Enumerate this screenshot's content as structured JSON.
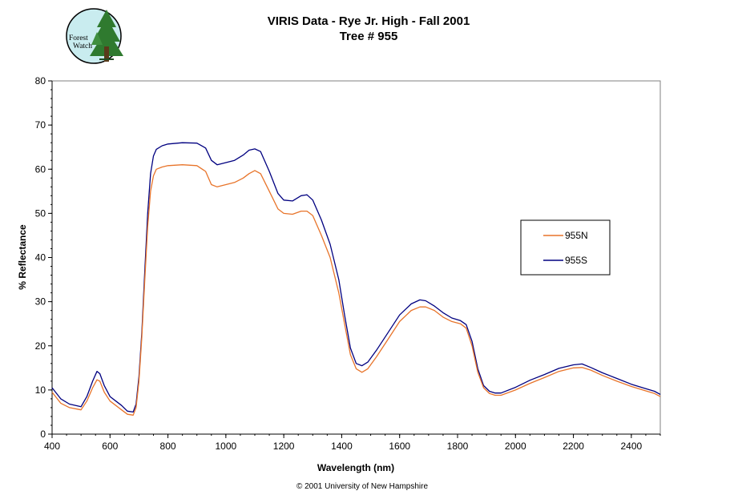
{
  "logo": {
    "line1": "Forest",
    "line2": "Watch"
  },
  "copyright": "© 2001 University of New Hampshire",
  "chart_data": {
    "type": "line",
    "title": "VIRIS Data - Rye Jr. High - Fall 2001",
    "subtitle": "Tree # 955",
    "xlabel": "Wavelength (nm)",
    "ylabel": "% Reflectance",
    "xlim": [
      400,
      2500
    ],
    "ylim": [
      0,
      80
    ],
    "x_ticks": [
      400,
      600,
      800,
      1000,
      1200,
      1400,
      1600,
      1800,
      2000,
      2200,
      2400
    ],
    "y_ticks": [
      0,
      10,
      20,
      30,
      40,
      50,
      60,
      70,
      80
    ],
    "grid": false,
    "legend_position": "right",
    "series": [
      {
        "name": "955N",
        "color": "#e8742a",
        "x": [
          400,
          430,
          460,
          500,
          520,
          540,
          555,
          565,
          580,
          600,
          620,
          640,
          660,
          680,
          690,
          700,
          710,
          720,
          730,
          740,
          750,
          760,
          780,
          800,
          850,
          900,
          930,
          950,
          970,
          1000,
          1030,
          1060,
          1080,
          1100,
          1120,
          1150,
          1180,
          1200,
          1230,
          1260,
          1280,
          1300,
          1330,
          1360,
          1390,
          1410,
          1430,
          1450,
          1470,
          1490,
          1520,
          1560,
          1600,
          1640,
          1670,
          1690,
          1720,
          1750,
          1780,
          1810,
          1830,
          1850,
          1870,
          1890,
          1910,
          1930,
          1950,
          2000,
          2050,
          2100,
          2150,
          2200,
          2230,
          2260,
          2300,
          2350,
          2400,
          2450,
          2480,
          2500
        ],
        "y": [
          9.5,
          7.0,
          6.0,
          5.5,
          7.5,
          10.5,
          12.3,
          12.0,
          9.5,
          7.5,
          6.5,
          5.5,
          4.5,
          4.3,
          6.0,
          12.0,
          22.0,
          35.0,
          47.0,
          55.0,
          58.5,
          60.0,
          60.5,
          60.8,
          61.0,
          60.8,
          59.5,
          56.5,
          56.0,
          56.5,
          57.0,
          58.0,
          59.0,
          59.7,
          59.0,
          55.0,
          51.0,
          50.0,
          49.8,
          50.5,
          50.5,
          49.5,
          45.0,
          40.0,
          32.0,
          25.0,
          18.0,
          14.8,
          14.0,
          14.8,
          17.5,
          21.5,
          25.5,
          28.0,
          28.8,
          28.8,
          28.0,
          26.5,
          25.5,
          25.0,
          24.0,
          20.0,
          14.0,
          10.5,
          9.2,
          8.8,
          8.8,
          10.0,
          11.5,
          12.8,
          14.2,
          15.0,
          15.1,
          14.5,
          13.3,
          12.0,
          10.8,
          9.8,
          9.2,
          8.5
        ]
      },
      {
        "name": "955S",
        "color": "#000080",
        "x": [
          400,
          430,
          460,
          500,
          520,
          540,
          555,
          565,
          580,
          600,
          620,
          640,
          660,
          680,
          690,
          700,
          710,
          720,
          730,
          740,
          750,
          760,
          780,
          800,
          850,
          900,
          930,
          950,
          970,
          1000,
          1030,
          1060,
          1080,
          1100,
          1120,
          1150,
          1180,
          1200,
          1230,
          1260,
          1280,
          1300,
          1330,
          1360,
          1390,
          1410,
          1430,
          1450,
          1470,
          1490,
          1520,
          1560,
          1600,
          1640,
          1670,
          1690,
          1720,
          1750,
          1780,
          1810,
          1830,
          1850,
          1870,
          1890,
          1910,
          1930,
          1950,
          2000,
          2050,
          2100,
          2150,
          2200,
          2230,
          2260,
          2300,
          2350,
          2400,
          2450,
          2480,
          2500
        ],
        "y": [
          10.5,
          8.0,
          6.8,
          6.2,
          8.5,
          12.0,
          14.2,
          13.7,
          11.0,
          8.5,
          7.5,
          6.5,
          5.2,
          5.0,
          6.8,
          13.0,
          23.0,
          37.0,
          50.0,
          59.0,
          63.0,
          64.5,
          65.3,
          65.7,
          66.0,
          65.9,
          64.8,
          62.0,
          61.0,
          61.5,
          62.0,
          63.2,
          64.3,
          64.6,
          64.0,
          59.5,
          54.5,
          53.0,
          52.8,
          54.0,
          54.2,
          53.0,
          48.5,
          43.0,
          35.0,
          27.0,
          19.5,
          16.0,
          15.5,
          16.3,
          19.0,
          23.0,
          27.0,
          29.5,
          30.4,
          30.2,
          29.0,
          27.5,
          26.3,
          25.7,
          24.8,
          21.0,
          14.8,
          11.0,
          9.7,
          9.3,
          9.3,
          10.6,
          12.2,
          13.5,
          14.9,
          15.7,
          15.9,
          15.1,
          13.9,
          12.6,
          11.3,
          10.3,
          9.7,
          9.0
        ]
      }
    ]
  }
}
